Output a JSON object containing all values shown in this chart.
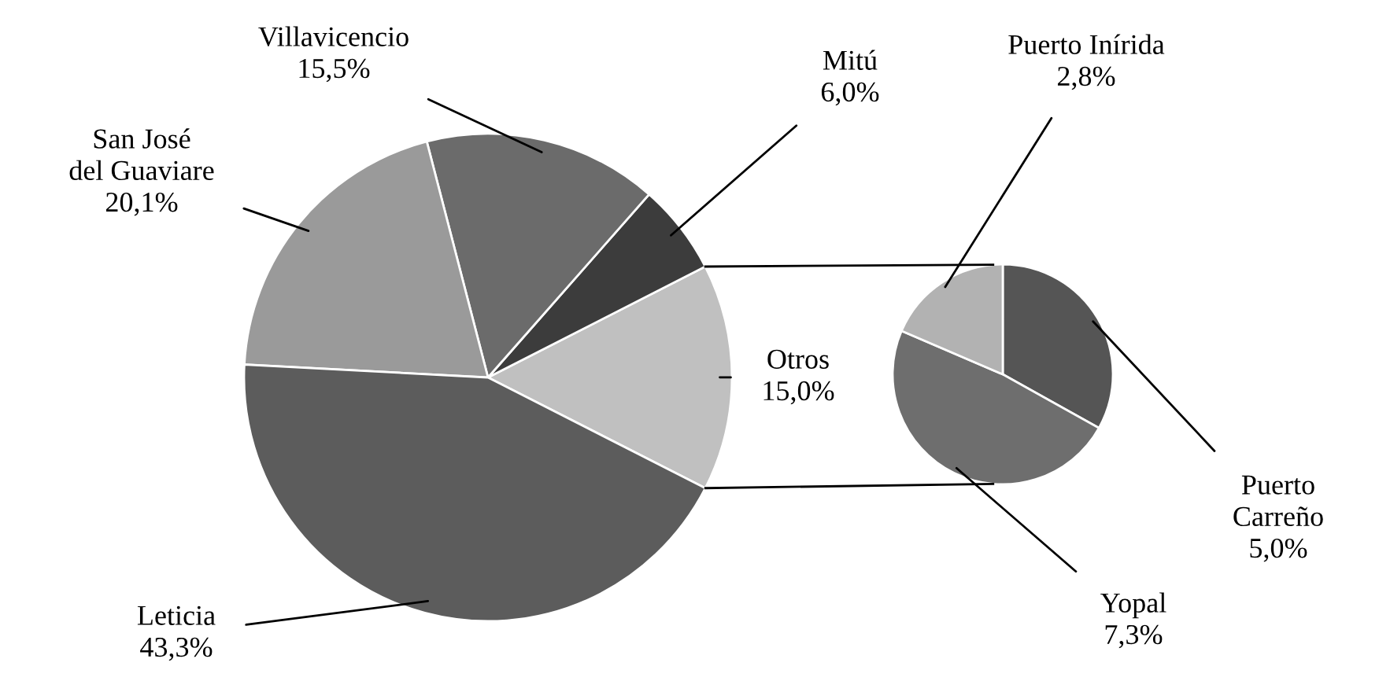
{
  "chart_data": [
    {
      "type": "pie",
      "categories": [
        "Otros",
        "Mitú",
        "Villavicencio",
        "San José\ndel Guaviare",
        "Leticia"
      ],
      "values": [
        15.0,
        6.0,
        15.5,
        20.1,
        43.3
      ],
      "value_labels": [
        "15,0%",
        "6,0%",
        "15,5%",
        "20,1%",
        "43,3%"
      ],
      "colors": [
        "#c0c0c0",
        "#3c3c3c",
        "#6b6b6b",
        "#9a9a9a",
        "#5c5c5c"
      ]
    },
    {
      "type": "pie",
      "categories": [
        "Puerto\nCarreño",
        "Yopal",
        "Puerto Inírida"
      ],
      "values": [
        5.0,
        7.3,
        2.8
      ],
      "value_labels": [
        "5,0%",
        "7,3%",
        "2,8%"
      ],
      "colors": [
        "#555555",
        "#6e6e6e",
        "#b2b2b2"
      ]
    }
  ]
}
